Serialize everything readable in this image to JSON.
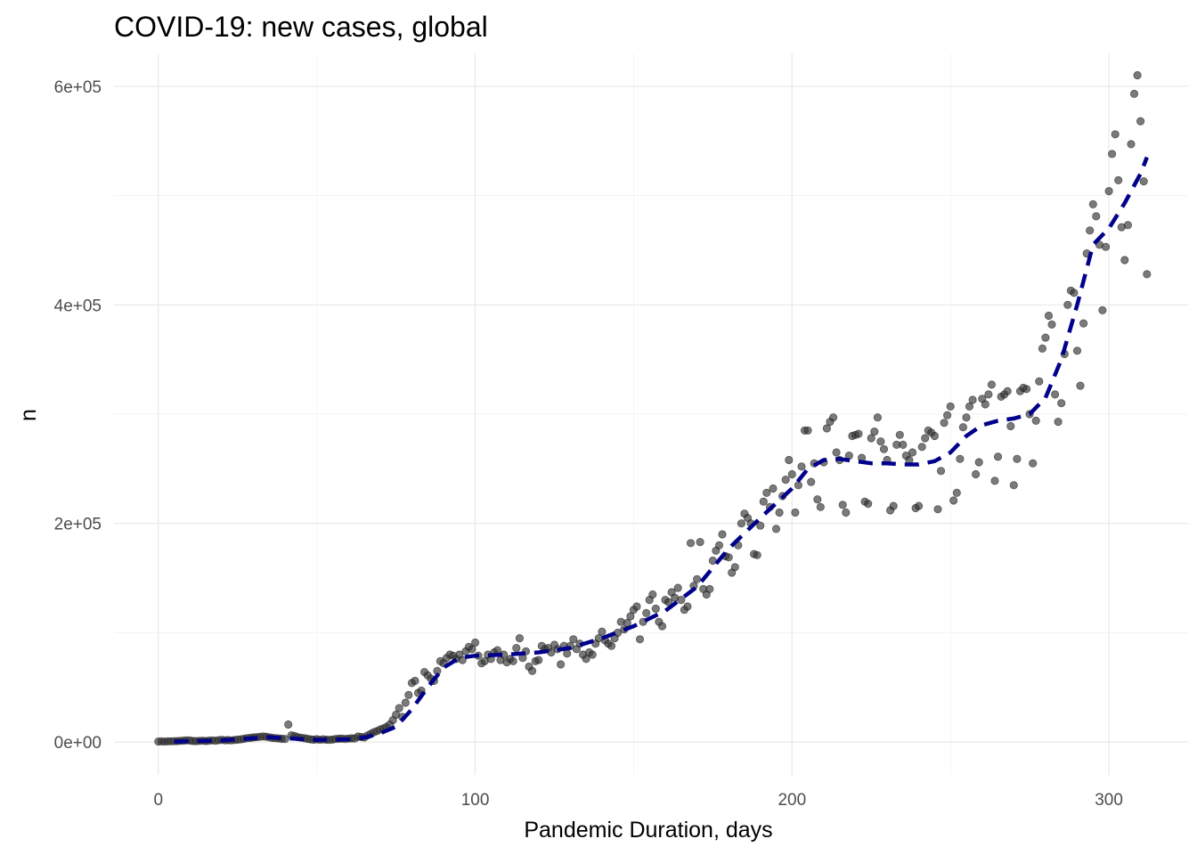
{
  "chart_data": {
    "type": "scatter",
    "title": "COVID-19: new cases, global",
    "xlabel": "Pandemic Duration, days",
    "ylabel": "n",
    "xlim": [
      -14,
      325
    ],
    "ylim": [
      -30000,
      630000
    ],
    "x_ticks": [
      0,
      100,
      200,
      300
    ],
    "x_tick_labels": [
      "0",
      "100",
      "200",
      "300"
    ],
    "y_ticks": [
      0,
      200000,
      400000,
      600000
    ],
    "y_tick_labels": [
      "0e+00",
      "2e+05",
      "4e+05",
      "6e+05"
    ],
    "grid": true,
    "legend": "none",
    "colors": {
      "points": "#333333",
      "trend": "#00008b"
    },
    "points": [
      [
        0,
        500
      ],
      [
        1,
        600
      ],
      [
        2,
        400
      ],
      [
        3,
        600
      ],
      [
        4,
        700
      ],
      [
        5,
        800
      ],
      [
        6,
        900
      ],
      [
        7,
        1100
      ],
      [
        8,
        1300
      ],
      [
        9,
        1600
      ],
      [
        10,
        1400
      ],
      [
        11,
        1000
      ],
      [
        12,
        900
      ],
      [
        13,
        1100
      ],
      [
        14,
        1200
      ],
      [
        15,
        1000
      ],
      [
        16,
        1300
      ],
      [
        17,
        1500
      ],
      [
        18,
        1200
      ],
      [
        19,
        1700
      ],
      [
        20,
        2000
      ],
      [
        21,
        1600
      ],
      [
        22,
        1800
      ],
      [
        23,
        1500
      ],
      [
        24,
        1900
      ],
      [
        25,
        2200
      ],
      [
        26,
        2500
      ],
      [
        27,
        3000
      ],
      [
        28,
        3500
      ],
      [
        29,
        3800
      ],
      [
        30,
        4200
      ],
      [
        31,
        4500
      ],
      [
        32,
        4800
      ],
      [
        33,
        5100
      ],
      [
        34,
        4900
      ],
      [
        35,
        4300
      ],
      [
        36,
        3800
      ],
      [
        37,
        3600
      ],
      [
        38,
        3300
      ],
      [
        39,
        3000
      ],
      [
        40,
        2800
      ],
      [
        41,
        16000
      ],
      [
        42,
        6200
      ],
      [
        43,
        5500
      ],
      [
        44,
        4500
      ],
      [
        45,
        4000
      ],
      [
        46,
        3500
      ],
      [
        47,
        3000
      ],
      [
        48,
        2500
      ],
      [
        49,
        2200
      ],
      [
        50,
        2600
      ],
      [
        51,
        2000
      ],
      [
        52,
        2500
      ],
      [
        53,
        2200
      ],
      [
        54,
        2000
      ],
      [
        55,
        2300
      ],
      [
        56,
        2800
      ],
      [
        57,
        3000
      ],
      [
        58,
        3100
      ],
      [
        59,
        2800
      ],
      [
        60,
        3200
      ],
      [
        61,
        3400
      ],
      [
        62,
        3300
      ],
      [
        63,
        5000
      ],
      [
        64,
        4600
      ],
      [
        65,
        4200
      ],
      [
        66,
        6000
      ],
      [
        67,
        7500
      ],
      [
        68,
        9000
      ],
      [
        69,
        10000
      ],
      [
        70,
        11500
      ],
      [
        71,
        12500
      ],
      [
        72,
        13800
      ],
      [
        73,
        16000
      ],
      [
        74,
        20000
      ],
      [
        75,
        25000
      ],
      [
        76,
        31000
      ],
      [
        77,
        23000
      ],
      [
        78,
        36000
      ],
      [
        79,
        43000
      ],
      [
        80,
        54000
      ],
      [
        81,
        56000
      ],
      [
        82,
        45000
      ],
      [
        83,
        47000
      ],
      [
        84,
        64000
      ],
      [
        85,
        61000
      ],
      [
        86,
        58000
      ],
      [
        87,
        56000
      ],
      [
        88,
        65000
      ],
      [
        89,
        74000
      ],
      [
        90,
        72000
      ],
      [
        91,
        77000
      ],
      [
        92,
        80000
      ],
      [
        93,
        79000
      ],
      [
        94,
        76000
      ],
      [
        95,
        80000
      ],
      [
        96,
        75000
      ],
      [
        97,
        83000
      ],
      [
        98,
        87000
      ],
      [
        99,
        85000
      ],
      [
        100,
        91000
      ],
      [
        101,
        79000
      ],
      [
        102,
        72000
      ],
      [
        103,
        74000
      ],
      [
        104,
        80000
      ],
      [
        105,
        76000
      ],
      [
        106,
        82000
      ],
      [
        107,
        84000
      ],
      [
        108,
        75000
      ],
      [
        109,
        80000
      ],
      [
        110,
        73000
      ],
      [
        111,
        76000
      ],
      [
        112,
        74000
      ],
      [
        113,
        86000
      ],
      [
        114,
        95000
      ],
      [
        115,
        77000
      ],
      [
        116,
        83000
      ],
      [
        117,
        69000
      ],
      [
        118,
        65000
      ],
      [
        119,
        74000
      ],
      [
        120,
        75000
      ],
      [
        121,
        88000
      ],
      [
        122,
        85000
      ],
      [
        123,
        86000
      ],
      [
        124,
        82000
      ],
      [
        125,
        89000
      ],
      [
        126,
        85000
      ],
      [
        127,
        71000
      ],
      [
        128,
        88000
      ],
      [
        129,
        81000
      ],
      [
        130,
        88000
      ],
      [
        131,
        94000
      ],
      [
        132,
        85000
      ],
      [
        133,
        90000
      ],
      [
        134,
        80000
      ],
      [
        135,
        76000
      ],
      [
        136,
        82000
      ],
      [
        137,
        80000
      ],
      [
        138,
        90000
      ],
      [
        139,
        95000
      ],
      [
        140,
        101000
      ],
      [
        141,
        93000
      ],
      [
        142,
        90000
      ],
      [
        143,
        88000
      ],
      [
        144,
        95000
      ],
      [
        145,
        100000
      ],
      [
        146,
        110000
      ],
      [
        147,
        103000
      ],
      [
        148,
        109000
      ],
      [
        149,
        115000
      ],
      [
        150,
        121000
      ],
      [
        151,
        124000
      ],
      [
        152,
        94000
      ],
      [
        153,
        110000
      ],
      [
        154,
        118000
      ],
      [
        155,
        130000
      ],
      [
        156,
        135000
      ],
      [
        157,
        122000
      ],
      [
        158,
        110000
      ],
      [
        159,
        106000
      ],
      [
        160,
        130000
      ],
      [
        161,
        128000
      ],
      [
        162,
        137000
      ],
      [
        163,
        132000
      ],
      [
        164,
        141000
      ],
      [
        165,
        130000
      ],
      [
        166,
        121000
      ],
      [
        167,
        124000
      ],
      [
        168,
        182000
      ],
      [
        169,
        143000
      ],
      [
        170,
        149000
      ],
      [
        171,
        183000
      ],
      [
        172,
        140000
      ],
      [
        173,
        135000
      ],
      [
        174,
        140000
      ],
      [
        175,
        166000
      ],
      [
        176,
        175000
      ],
      [
        177,
        180000
      ],
      [
        178,
        190000
      ],
      [
        179,
        170000
      ],
      [
        180,
        169000
      ],
      [
        181,
        155000
      ],
      [
        182,
        160000
      ],
      [
        183,
        180000
      ],
      [
        184,
        200000
      ],
      [
        185,
        209000
      ],
      [
        186,
        205000
      ],
      [
        187,
        200000
      ],
      [
        188,
        172000
      ],
      [
        189,
        171000
      ],
      [
        190,
        198000
      ],
      [
        191,
        220000
      ],
      [
        192,
        228000
      ],
      [
        193,
        215000
      ],
      [
        194,
        232000
      ],
      [
        195,
        195000
      ],
      [
        196,
        210000
      ],
      [
        197,
        225000
      ],
      [
        198,
        240000
      ],
      [
        199,
        258000
      ],
      [
        200,
        245000
      ],
      [
        201,
        210000
      ],
      [
        202,
        235000
      ],
      [
        203,
        252000
      ],
      [
        204,
        285000
      ],
      [
        205,
        285000
      ],
      [
        206,
        238000
      ],
      [
        207,
        255000
      ],
      [
        208,
        222000
      ],
      [
        209,
        215000
      ],
      [
        210,
        256000
      ],
      [
        211,
        287000
      ],
      [
        212,
        293000
      ],
      [
        213,
        297000
      ],
      [
        214,
        265000
      ],
      [
        215,
        258000
      ],
      [
        216,
        217000
      ],
      [
        217,
        210000
      ],
      [
        218,
        262000
      ],
      [
        219,
        280000
      ],
      [
        220,
        281000
      ],
      [
        221,
        282000
      ],
      [
        222,
        260000
      ],
      [
        223,
        220000
      ],
      [
        224,
        218000
      ],
      [
        225,
        278000
      ],
      [
        226,
        284000
      ],
      [
        227,
        297000
      ],
      [
        228,
        275000
      ],
      [
        229,
        268000
      ],
      [
        230,
        258000
      ],
      [
        231,
        212000
      ],
      [
        232,
        216000
      ],
      [
        233,
        272000
      ],
      [
        234,
        281000
      ],
      [
        235,
        272000
      ],
      [
        236,
        262000
      ],
      [
        237,
        258000
      ],
      [
        238,
        265000
      ],
      [
        239,
        214000
      ],
      [
        240,
        216000
      ],
      [
        241,
        270000
      ],
      [
        242,
        278000
      ],
      [
        243,
        285000
      ],
      [
        244,
        283000
      ],
      [
        245,
        280000
      ],
      [
        246,
        213000
      ],
      [
        247,
        248000
      ],
      [
        248,
        292000
      ],
      [
        249,
        299000
      ],
      [
        250,
        307000
      ],
      [
        251,
        221000
      ],
      [
        252,
        228000
      ],
      [
        253,
        259000
      ],
      [
        254,
        288000
      ],
      [
        255,
        297000
      ],
      [
        256,
        307000
      ],
      [
        257,
        313000
      ],
      [
        258,
        245000
      ],
      [
        259,
        256000
      ],
      [
        260,
        314000
      ],
      [
        261,
        309000
      ],
      [
        262,
        318000
      ],
      [
        263,
        327000
      ],
      [
        264,
        239000
      ],
      [
        265,
        261000
      ],
      [
        266,
        316000
      ],
      [
        267,
        318000
      ],
      [
        268,
        321000
      ],
      [
        269,
        289000
      ],
      [
        270,
        235000
      ],
      [
        271,
        259000
      ],
      [
        272,
        321000
      ],
      [
        273,
        324000
      ],
      [
        274,
        323000
      ],
      [
        275,
        300000
      ],
      [
        276,
        255000
      ],
      [
        277,
        294000
      ],
      [
        278,
        330000
      ],
      [
        279,
        360000
      ],
      [
        280,
        370000
      ],
      [
        281,
        390000
      ],
      [
        282,
        382000
      ],
      [
        283,
        318000
      ],
      [
        284,
        293000
      ],
      [
        285,
        310000
      ],
      [
        286,
        355000
      ],
      [
        287,
        400000
      ],
      [
        288,
        413000
      ],
      [
        289,
        411000
      ],
      [
        290,
        358000
      ],
      [
        291,
        326000
      ],
      [
        292,
        383000
      ],
      [
        293,
        447000
      ],
      [
        294,
        468000
      ],
      [
        295,
        492000
      ],
      [
        296,
        481000
      ],
      [
        297,
        455000
      ],
      [
        298,
        395000
      ],
      [
        299,
        453000
      ],
      [
        300,
        504000
      ],
      [
        301,
        538000
      ],
      [
        302,
        556000
      ],
      [
        303,
        514000
      ],
      [
        304,
        471000
      ],
      [
        305,
        441000
      ],
      [
        306,
        473000
      ],
      [
        307,
        547000
      ],
      [
        308,
        593000
      ],
      [
        309,
        610000
      ],
      [
        310,
        568000
      ],
      [
        311,
        513000
      ],
      [
        312,
        428000
      ]
    ],
    "trend_line": {
      "style": "dashed",
      "x": [
        5,
        10,
        20,
        30,
        35,
        40,
        50,
        60,
        65,
        70,
        75,
        80,
        85,
        90,
        95,
        100,
        110,
        120,
        130,
        140,
        150,
        160,
        170,
        180,
        190,
        200,
        205,
        210,
        215,
        220,
        225,
        230,
        235,
        240,
        245,
        250,
        255,
        260,
        265,
        270,
        275,
        280,
        285,
        290,
        295,
        300,
        305,
        310,
        312
      ],
      "y": [
        500,
        800,
        1500,
        3500,
        4500,
        3500,
        2000,
        2500,
        4000,
        8000,
        14000,
        30000,
        50000,
        68000,
        77000,
        79000,
        80000,
        82000,
        86000,
        95000,
        106000,
        120000,
        142000,
        177000,
        205000,
        232000,
        250000,
        258000,
        259000,
        257000,
        255000,
        255000,
        254000,
        254000,
        257000,
        265000,
        280000,
        290000,
        294000,
        296000,
        300000,
        315000,
        350000,
        400000,
        455000,
        470000,
        493000,
        520000,
        535000
      ]
    }
  }
}
